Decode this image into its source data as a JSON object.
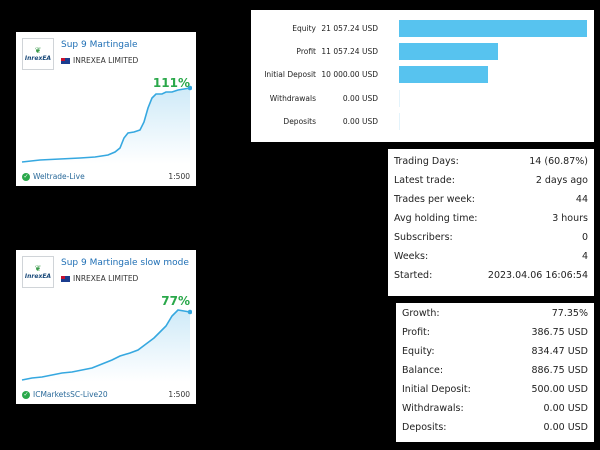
{
  "signals": [
    {
      "name": "Sup 9 Martingale",
      "provider": "INREXEA LIMITED",
      "logo_text": "InrexEA",
      "growth": "111%",
      "broker": "Weltrade-Live",
      "leverage": "1:500"
    },
    {
      "name": "Sup 9 Martingale slow mode",
      "provider": "INREXEA LIMITED",
      "logo_text": "InrexEA",
      "growth": "77%",
      "broker": "ICMarketsSC-Live20",
      "leverage": "1:500"
    }
  ],
  "balance_bars": {
    "max_value": 21057.24,
    "rows": [
      {
        "label": "Equity",
        "value_text": "21 057.24 USD",
        "value": 21057.24
      },
      {
        "label": "Profit",
        "value_text": "11 057.24 USD",
        "value": 11057.24
      },
      {
        "label": "Initial Deposit",
        "value_text": "10 000.00 USD",
        "value": 10000.0
      },
      {
        "label": "Withdrawals",
        "value_text": "0.00 USD",
        "value": 0
      },
      {
        "label": "Deposits",
        "value_text": "0.00 USD",
        "value": 0
      }
    ]
  },
  "trading_stats": [
    {
      "label": "Trading Days:",
      "value": "14 (60.87%)"
    },
    {
      "label": "Latest trade:",
      "value": "2 days ago"
    },
    {
      "label": "Trades per week:",
      "value": "44"
    },
    {
      "label": "Avg holding time:",
      "value": "3 hours"
    },
    {
      "label": "Subscribers:",
      "value": "0"
    },
    {
      "label": "Weeks:",
      "value": "4"
    },
    {
      "label": "Started:",
      "value": "2023.04.06 16:06:54"
    }
  ],
  "account_stats": [
    {
      "label": "Growth:",
      "value": "77.35%"
    },
    {
      "label": "Profit:",
      "value": "386.75 USD"
    },
    {
      "label": "Equity:",
      "value": "834.47 USD"
    },
    {
      "label": "Balance:",
      "value": "886.75 USD"
    },
    {
      "label": "Initial Deposit:",
      "value": "500.00 USD"
    },
    {
      "label": "Withdrawals:",
      "value": "0.00 USD"
    },
    {
      "label": "Deposits:",
      "value": "0.00 USD"
    }
  ],
  "colors": {
    "bar": "#57c3ef",
    "line": "#36a8e0",
    "growth": "#2aa84a",
    "link": "#1f6fb5"
  }
}
